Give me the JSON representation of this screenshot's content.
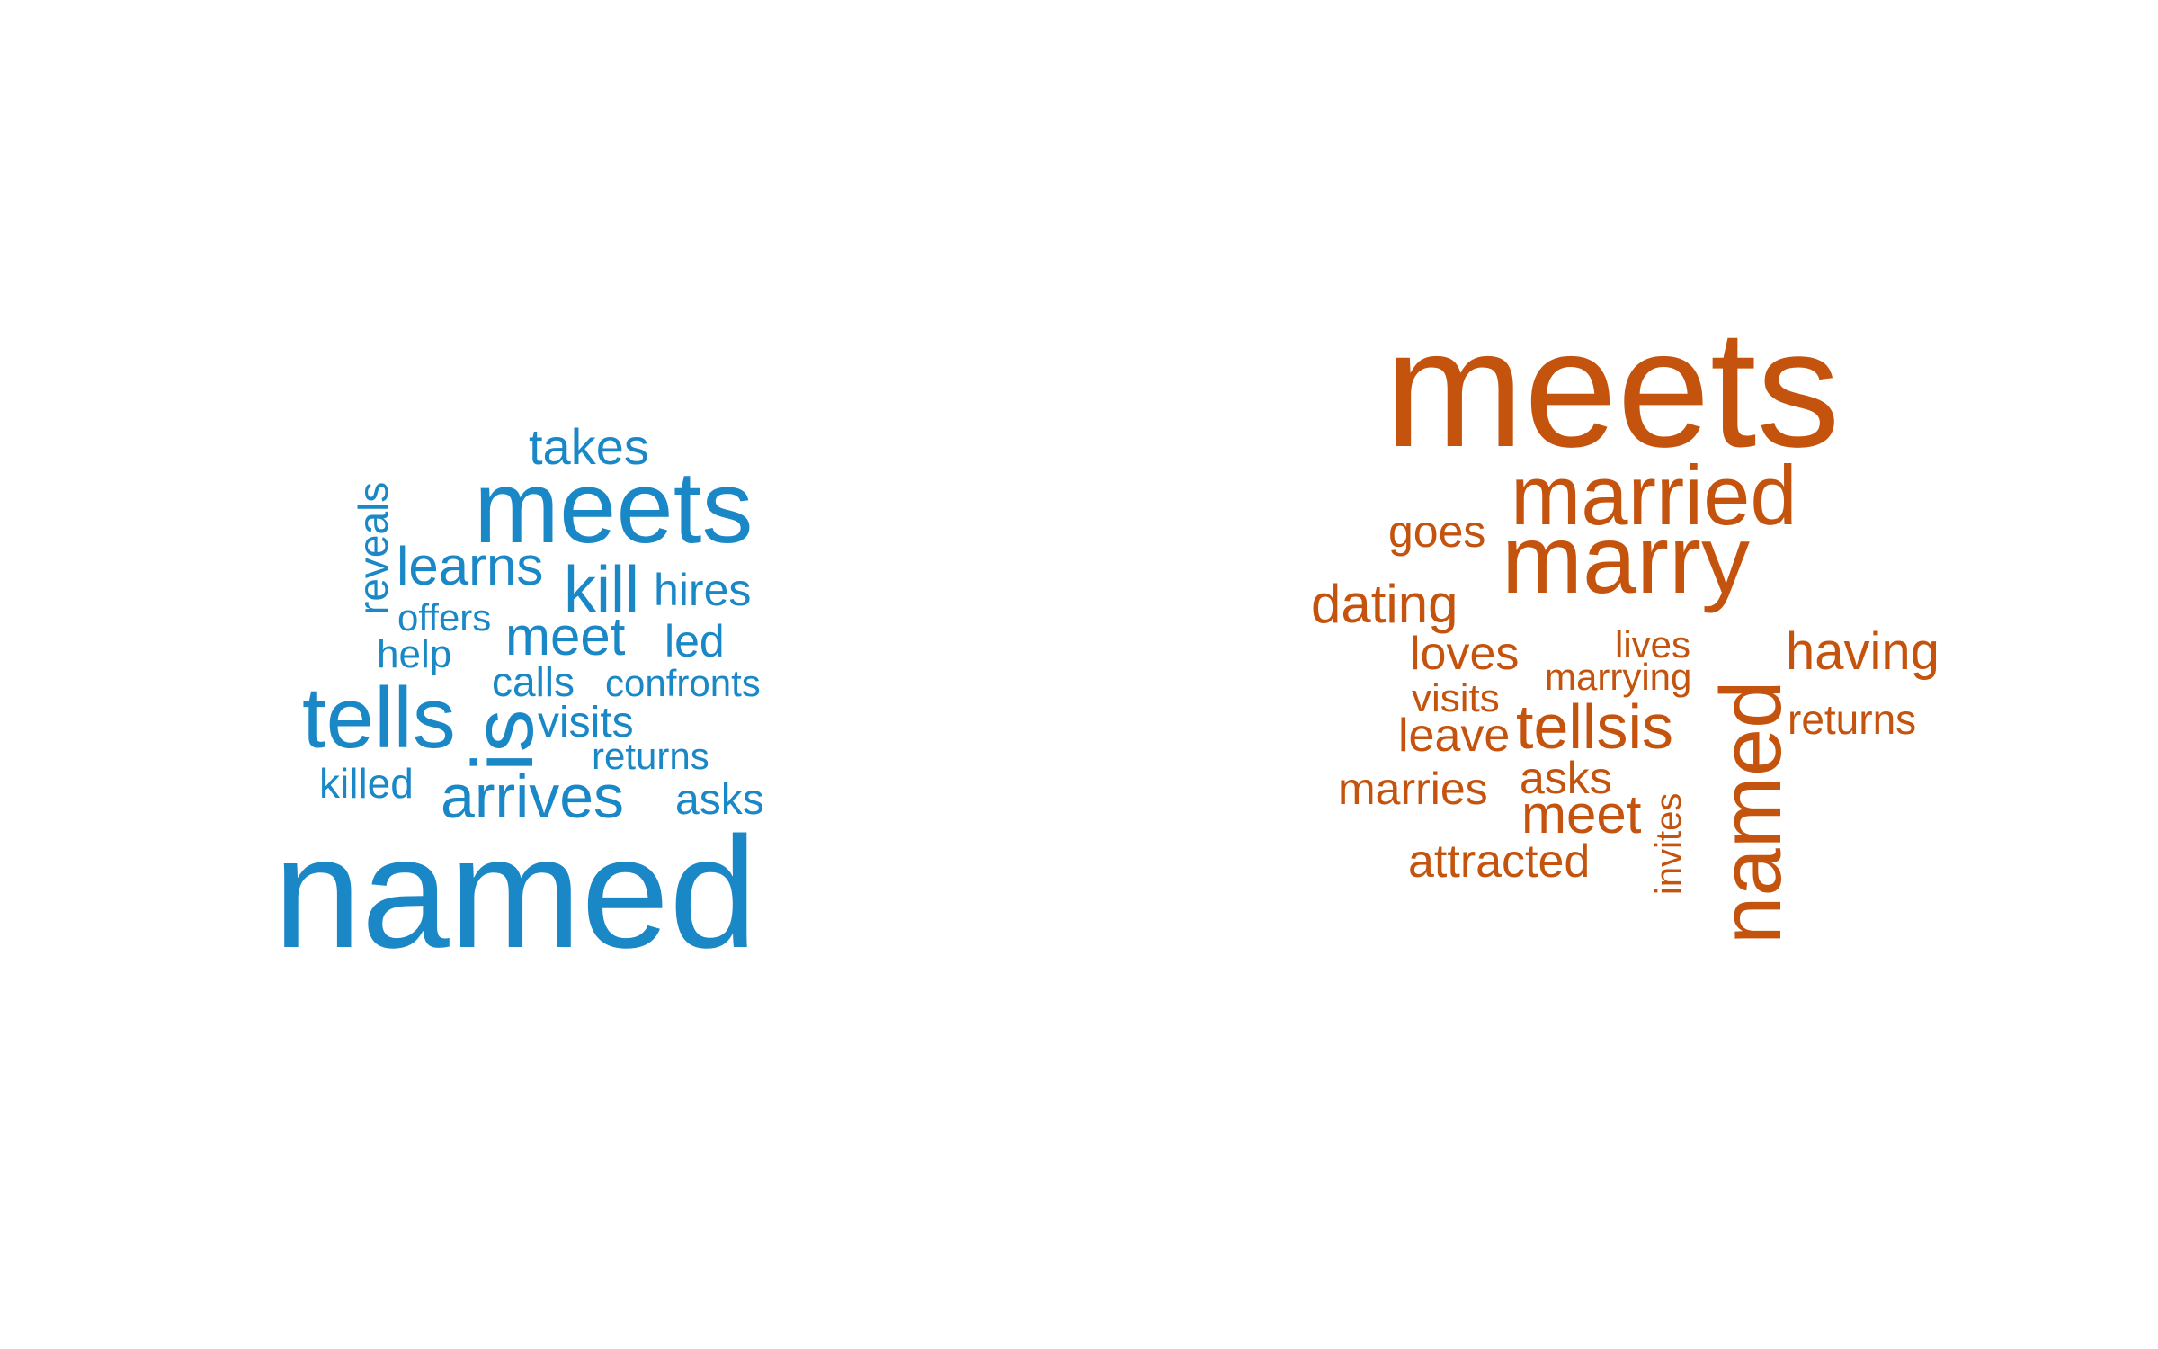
{
  "colors": {
    "left_cloud": "#1a87c6",
    "right_cloud": "#c4530e",
    "background": "#ffffff"
  },
  "clouds": [
    {
      "id": "left",
      "words": [
        {
          "text": "named"
        },
        {
          "text": "meets"
        },
        {
          "text": "tells"
        },
        {
          "text": "is"
        },
        {
          "text": "arrives"
        },
        {
          "text": "kill"
        },
        {
          "text": "meet"
        },
        {
          "text": "learns"
        },
        {
          "text": "takes"
        },
        {
          "text": "reveals"
        },
        {
          "text": "hires"
        },
        {
          "text": "offers"
        },
        {
          "text": "led"
        },
        {
          "text": "help"
        },
        {
          "text": "calls"
        },
        {
          "text": "confronts"
        },
        {
          "text": "visits"
        },
        {
          "text": "returns"
        },
        {
          "text": "killed"
        },
        {
          "text": "asks"
        }
      ]
    },
    {
      "id": "right",
      "words": [
        {
          "text": "meets"
        },
        {
          "text": "married"
        },
        {
          "text": "marry"
        },
        {
          "text": "named"
        },
        {
          "text": "goes"
        },
        {
          "text": "dating"
        },
        {
          "text": "loves"
        },
        {
          "text": "lives"
        },
        {
          "text": "having"
        },
        {
          "text": "marrying"
        },
        {
          "text": "visits"
        },
        {
          "text": "tellsis"
        },
        {
          "text": "returns"
        },
        {
          "text": "leave"
        },
        {
          "text": "asks"
        },
        {
          "text": "marries"
        },
        {
          "text": "meet"
        },
        {
          "text": "invites"
        },
        {
          "text": "attracted"
        }
      ]
    }
  ]
}
